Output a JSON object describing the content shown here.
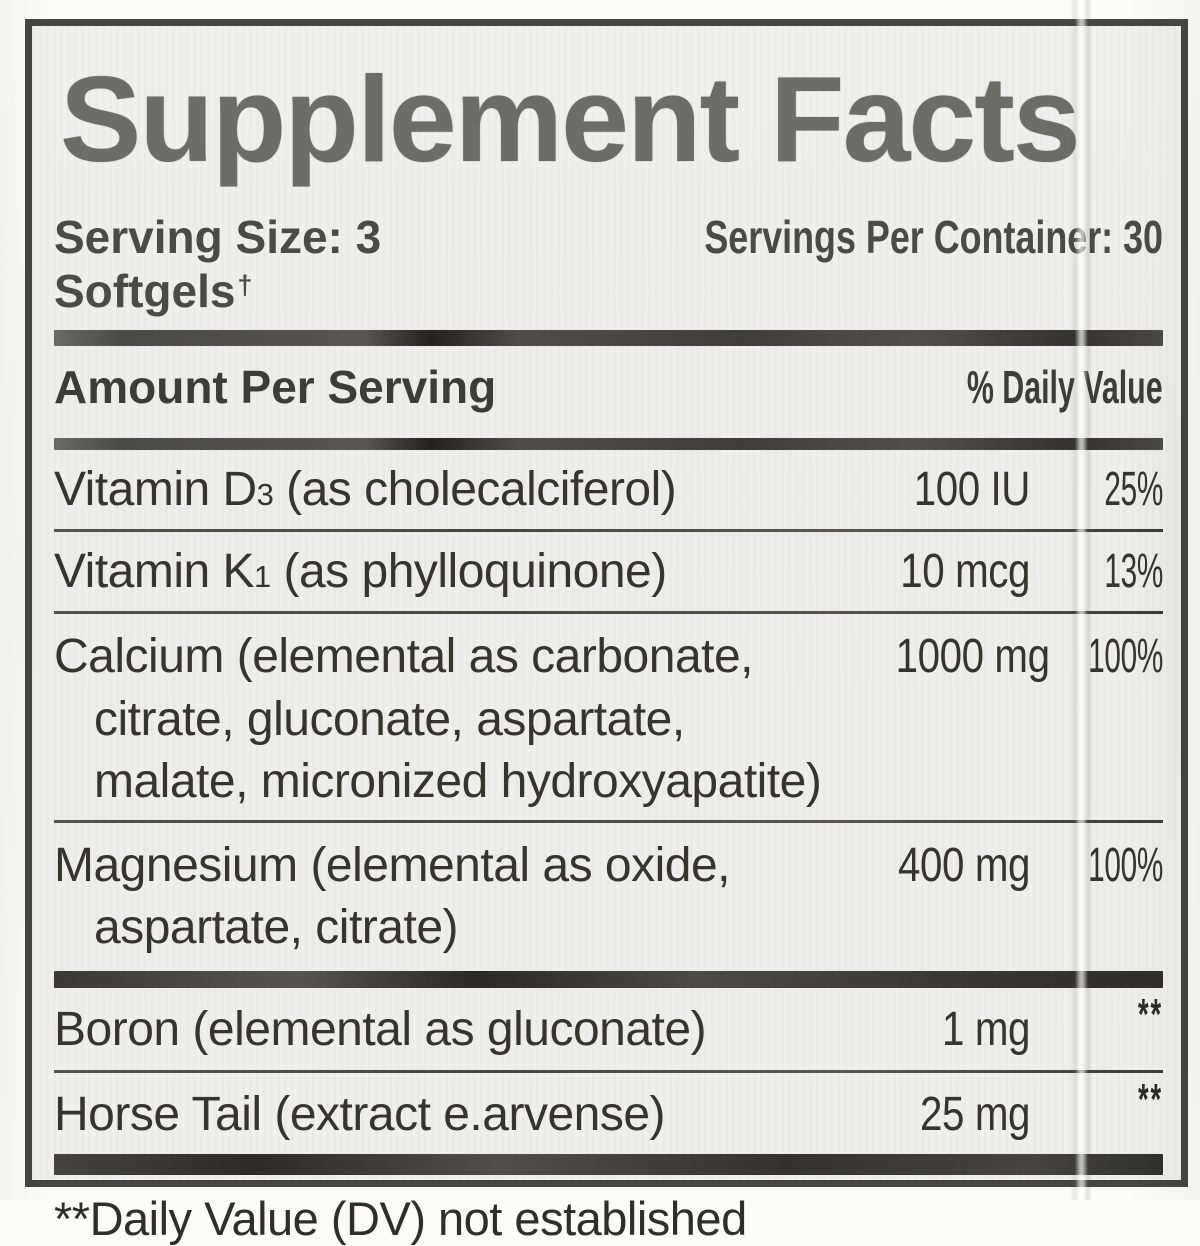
{
  "panel": {
    "title": "Supplement Facts",
    "serving_size_label": "Serving Size: 3 Softgels",
    "serving_size_dagger": "†",
    "servings_per_container": "Servings Per Container: 30",
    "header": {
      "amount_per_serving": "Amount Per Serving",
      "percent_daily_value": "% Daily Value"
    },
    "rows": [
      {
        "name_pre": "Vitamin D",
        "name_sub": "3",
        "name_post": " (as cholecalciferol)",
        "amount": "100 IU",
        "daily_value": "25%"
      },
      {
        "name_pre": "Vitamin K",
        "name_sub": "1",
        "name_post": " (as phylloquinone)",
        "amount": "10 mcg",
        "daily_value": "13%"
      },
      {
        "line1": "Calcium (elemental as carbonate,",
        "line2": "citrate, gluconate, aspartate,",
        "line3": "malate, micronized hydroxyapatite)",
        "amount": "1000 mg",
        "daily_value": "100%"
      },
      {
        "line1": "Magnesium (elemental as oxide,",
        "line2": "aspartate, citrate)",
        "amount": "400 mg",
        "daily_value": "100%"
      },
      {
        "name": "Boron (elemental as gluconate)",
        "amount": "1 mg",
        "daily_value": "**"
      },
      {
        "name": "Horse Tail (extract e.arvense)",
        "amount": "25 mg",
        "daily_value": "**"
      }
    ],
    "footnote": "**Daily Value (DV) not established",
    "colors": {
      "frame_border": "#454543",
      "panel_background": "#efeeec",
      "title_text": "#6c6c68",
      "body_text": "#35342f",
      "rule": "#4e4d49"
    }
  }
}
